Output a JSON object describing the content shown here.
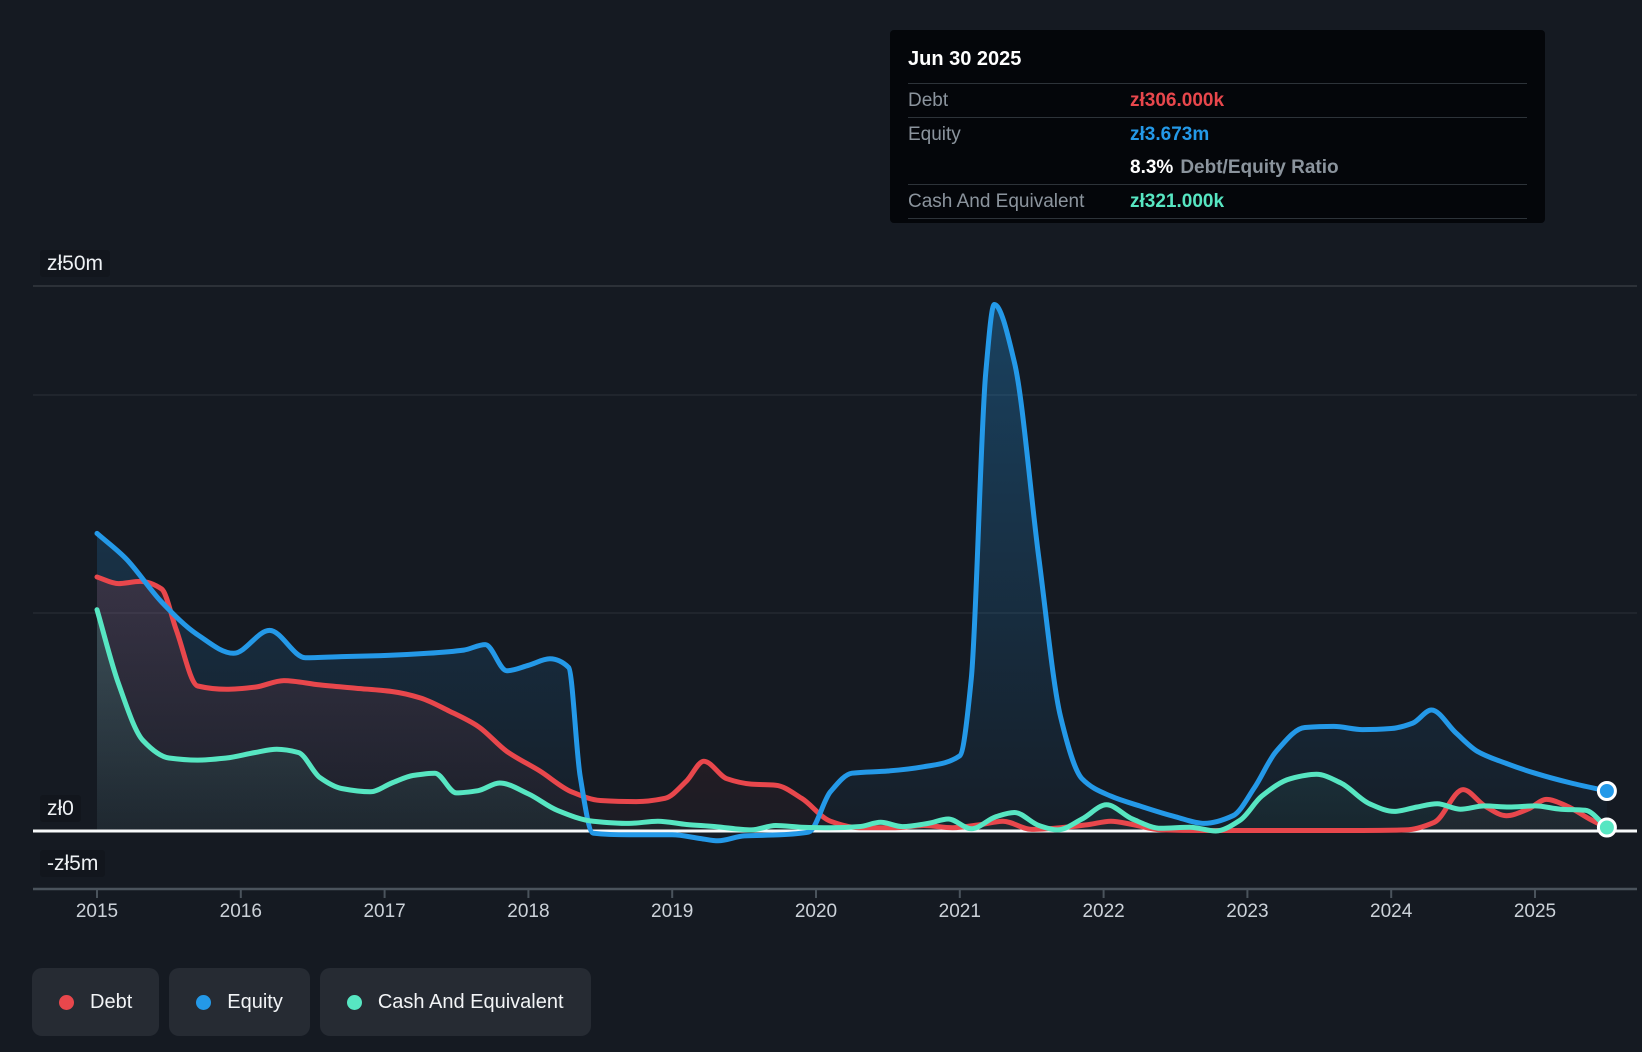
{
  "colors": {
    "debt": "#e8474c",
    "equity": "#2499e8",
    "cash": "#57e6c2",
    "zero_line": "#f7f9fa",
    "axis_line": "#4a535c",
    "grid_major": "rgba(255,255,255,0.10)",
    "grid_minor": "rgba(255,255,255,0.05)",
    "page_bg": "#151a22",
    "tooltip_bg": "#04060a",
    "chip_bg": "#262b33"
  },
  "tooltip": {
    "title": "Jun 30 2025",
    "debt": {
      "label": "Debt",
      "value": "zł306.000k"
    },
    "equity": {
      "label": "Equity",
      "value": "zł3.673m"
    },
    "ratio": {
      "value": "8.3%",
      "label": "Debt/Equity Ratio"
    },
    "cash": {
      "label": "Cash And Equivalent",
      "value": "zł321.000k"
    }
  },
  "y_axis": {
    "labels": [
      "zł50m",
      "zł0",
      "-zł5m"
    ]
  },
  "x_axis": {
    "years": [
      "2015",
      "2016",
      "2017",
      "2018",
      "2019",
      "2020",
      "2021",
      "2022",
      "2023",
      "2024",
      "2025"
    ]
  },
  "legend": {
    "items": [
      {
        "label": "Debt",
        "color_key": "debt"
      },
      {
        "label": "Equity",
        "color_key": "equity"
      },
      {
        "label": "Cash And Equivalent",
        "color_key": "cash"
      }
    ]
  },
  "chart_data": {
    "type": "area",
    "x_unit": "year",
    "y_unit": "zl_millions",
    "x_range": [
      2015.0,
      2025.55
    ],
    "y_axis_labels": [
      {
        "text": "zł50m",
        "value_m": 50
      },
      {
        "text": "zł0",
        "value_m": 0
      },
      {
        "text": "-zł5m",
        "value_m": -5
      }
    ],
    "visible_gridlines_m": [
      50,
      40,
      20
    ],
    "zero_line": true,
    "legend_position": "bottom-left",
    "end_markers": [
      "equity",
      "cash"
    ],
    "latest_point": {
      "date": "Jun 30 2025",
      "debt_m": 0.306,
      "equity_m": 3.673,
      "cash_m": 0.321,
      "debt_equity_ratio": "8.3%"
    },
    "series": [
      {
        "name": "Debt",
        "color_key": "debt",
        "points": [
          [
            2015.0,
            23.3
          ],
          [
            2015.15,
            22.7
          ],
          [
            2015.3,
            22.9
          ],
          [
            2015.45,
            22.2
          ],
          [
            2015.55,
            18.5
          ],
          [
            2015.7,
            13.3
          ],
          [
            2015.9,
            13.0
          ],
          [
            2016.1,
            13.2
          ],
          [
            2016.3,
            13.8
          ],
          [
            2016.55,
            13.4
          ],
          [
            2016.8,
            13.1
          ],
          [
            2017.05,
            12.8
          ],
          [
            2017.25,
            12.2
          ],
          [
            2017.45,
            11.0
          ],
          [
            2017.65,
            9.6
          ],
          [
            2017.85,
            7.3
          ],
          [
            2018.08,
            5.5
          ],
          [
            2018.3,
            3.6
          ],
          [
            2018.5,
            2.8
          ],
          [
            2018.75,
            2.7
          ],
          [
            2018.95,
            3.0
          ],
          [
            2019.1,
            4.6
          ],
          [
            2019.22,
            6.4
          ],
          [
            2019.38,
            4.8
          ],
          [
            2019.55,
            4.3
          ],
          [
            2019.72,
            4.2
          ],
          [
            2019.9,
            3.0
          ],
          [
            2020.1,
            0.9
          ],
          [
            2020.3,
            0.3
          ],
          [
            2020.55,
            0.3
          ],
          [
            2020.75,
            0.5
          ],
          [
            2020.95,
            0.3
          ],
          [
            2021.15,
            0.6
          ],
          [
            2021.3,
            0.9
          ],
          [
            2021.5,
            0.15
          ],
          [
            2021.7,
            0.3
          ],
          [
            2021.9,
            0.6
          ],
          [
            2022.05,
            0.9
          ],
          [
            2022.2,
            0.6
          ],
          [
            2022.4,
            0.1
          ],
          [
            2022.7,
            0.05
          ],
          [
            2023.0,
            0.05
          ],
          [
            2023.4,
            0.05
          ],
          [
            2023.8,
            0.05
          ],
          [
            2024.1,
            0.1
          ],
          [
            2024.3,
            0.8
          ],
          [
            2024.5,
            3.8
          ],
          [
            2024.65,
            2.3
          ],
          [
            2024.8,
            1.4
          ],
          [
            2024.95,
            2.0
          ],
          [
            2025.08,
            2.9
          ],
          [
            2025.22,
            2.3
          ],
          [
            2025.38,
            1.1
          ],
          [
            2025.5,
            0.306
          ]
        ]
      },
      {
        "name": "Equity",
        "color_key": "equity",
        "points": [
          [
            2015.0,
            27.3
          ],
          [
            2015.2,
            25.0
          ],
          [
            2015.45,
            21.0
          ],
          [
            2015.7,
            18.0
          ],
          [
            2015.95,
            16.3
          ],
          [
            2016.2,
            18.4
          ],
          [
            2016.45,
            15.9
          ],
          [
            2016.7,
            16.0
          ],
          [
            2017.0,
            16.1
          ],
          [
            2017.3,
            16.3
          ],
          [
            2017.55,
            16.6
          ],
          [
            2017.7,
            17.1
          ],
          [
            2017.85,
            14.7
          ],
          [
            2018.0,
            15.2
          ],
          [
            2018.15,
            15.8
          ],
          [
            2018.28,
            15.0
          ],
          [
            2018.36,
            5.0
          ],
          [
            2018.45,
            -0.2
          ],
          [
            2018.7,
            -0.35
          ],
          [
            2019.0,
            -0.35
          ],
          [
            2019.2,
            -0.7
          ],
          [
            2019.32,
            -0.9
          ],
          [
            2019.5,
            -0.45
          ],
          [
            2019.75,
            -0.35
          ],
          [
            2019.95,
            -0.1
          ],
          [
            2020.1,
            3.6
          ],
          [
            2020.25,
            5.3
          ],
          [
            2020.5,
            5.5
          ],
          [
            2020.75,
            5.9
          ],
          [
            2021.0,
            6.9
          ],
          [
            2021.08,
            14.0
          ],
          [
            2021.18,
            42.0
          ],
          [
            2021.24,
            48.3
          ],
          [
            2021.38,
            43.0
          ],
          [
            2021.55,
            25.0
          ],
          [
            2021.7,
            10.5
          ],
          [
            2021.85,
            4.8
          ],
          [
            2022.05,
            3.2
          ],
          [
            2022.25,
            2.3
          ],
          [
            2022.5,
            1.3
          ],
          [
            2022.7,
            0.7
          ],
          [
            2022.9,
            1.4
          ],
          [
            2023.05,
            4.0
          ],
          [
            2023.2,
            7.3
          ],
          [
            2023.4,
            9.5
          ],
          [
            2023.6,
            9.6
          ],
          [
            2023.8,
            9.3
          ],
          [
            2024.0,
            9.4
          ],
          [
            2024.15,
            9.9
          ],
          [
            2024.28,
            11.1
          ],
          [
            2024.45,
            9.0
          ],
          [
            2024.6,
            7.3
          ],
          [
            2024.8,
            6.2
          ],
          [
            2025.0,
            5.3
          ],
          [
            2025.25,
            4.4
          ],
          [
            2025.5,
            3.673
          ]
        ]
      },
      {
        "name": "Cash And Equivalent",
        "color_key": "cash",
        "points": [
          [
            2015.0,
            20.3
          ],
          [
            2015.15,
            13.5
          ],
          [
            2015.32,
            8.3
          ],
          [
            2015.5,
            6.7
          ],
          [
            2015.7,
            6.5
          ],
          [
            2015.9,
            6.7
          ],
          [
            2016.1,
            7.2
          ],
          [
            2016.25,
            7.5
          ],
          [
            2016.4,
            7.2
          ],
          [
            2016.55,
            4.9
          ],
          [
            2016.7,
            3.9
          ],
          [
            2016.9,
            3.6
          ],
          [
            2017.05,
            4.4
          ],
          [
            2017.2,
            5.1
          ],
          [
            2017.35,
            5.3
          ],
          [
            2017.5,
            3.5
          ],
          [
            2017.65,
            3.7
          ],
          [
            2017.8,
            4.4
          ],
          [
            2018.0,
            3.4
          ],
          [
            2018.2,
            1.9
          ],
          [
            2018.45,
            0.9
          ],
          [
            2018.7,
            0.7
          ],
          [
            2018.9,
            0.9
          ],
          [
            2019.1,
            0.6
          ],
          [
            2019.3,
            0.4
          ],
          [
            2019.55,
            0.1
          ],
          [
            2019.72,
            0.5
          ],
          [
            2019.9,
            0.35
          ],
          [
            2020.1,
            0.3
          ],
          [
            2020.3,
            0.4
          ],
          [
            2020.45,
            0.8
          ],
          [
            2020.6,
            0.4
          ],
          [
            2020.78,
            0.7
          ],
          [
            2020.92,
            1.1
          ],
          [
            2021.08,
            0.2
          ],
          [
            2021.25,
            1.3
          ],
          [
            2021.38,
            1.7
          ],
          [
            2021.55,
            0.5
          ],
          [
            2021.68,
            0.1
          ],
          [
            2021.85,
            1.1
          ],
          [
            2022.02,
            2.4
          ],
          [
            2022.2,
            1.1
          ],
          [
            2022.4,
            0.25
          ],
          [
            2022.6,
            0.35
          ],
          [
            2022.78,
            0.0
          ],
          [
            2022.95,
            1.0
          ],
          [
            2023.1,
            3.2
          ],
          [
            2023.3,
            4.8
          ],
          [
            2023.48,
            5.2
          ],
          [
            2023.65,
            4.4
          ],
          [
            2023.85,
            2.5
          ],
          [
            2024.02,
            1.8
          ],
          [
            2024.18,
            2.2
          ],
          [
            2024.32,
            2.5
          ],
          [
            2024.48,
            2.0
          ],
          [
            2024.65,
            2.3
          ],
          [
            2024.82,
            2.2
          ],
          [
            2025.0,
            2.3
          ],
          [
            2025.18,
            2.0
          ],
          [
            2025.35,
            1.9
          ],
          [
            2025.5,
            0.321
          ]
        ]
      }
    ]
  }
}
